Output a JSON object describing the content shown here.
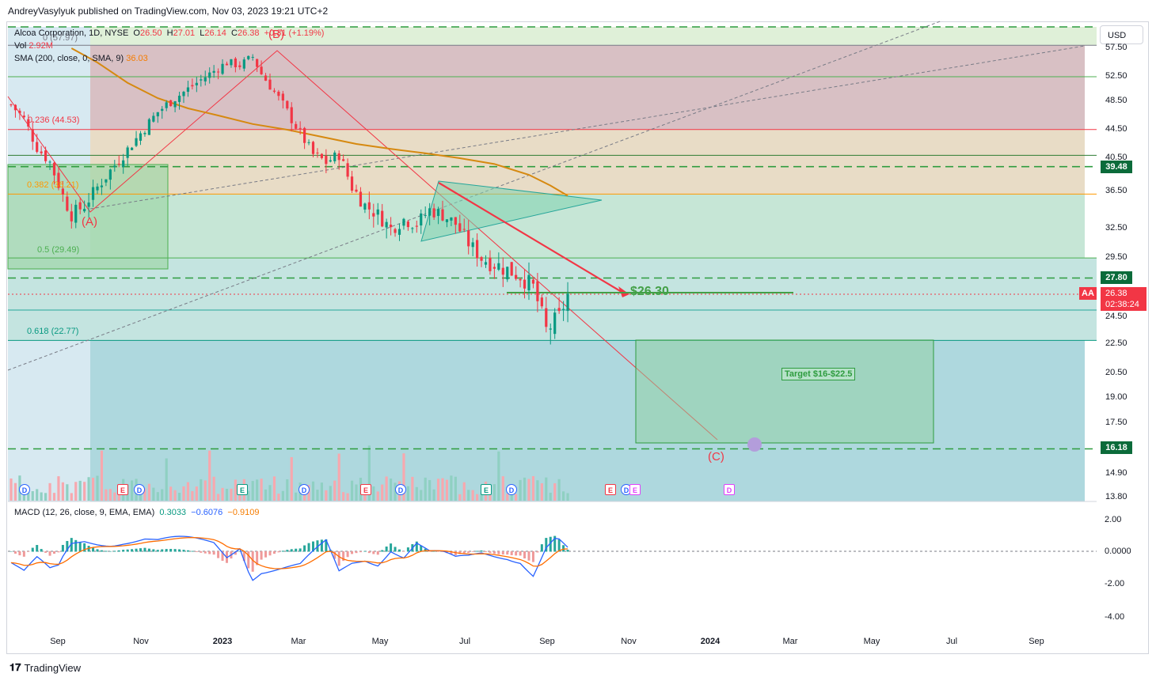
{
  "header": {
    "publisher_line": "AndreyVasylyuk published on TradingView.com, Nov 03, 2023 19:21 UTC+2"
  },
  "legend": {
    "symbol": "Alcoa Corporation, 1D, NYSE",
    "open_label": "O",
    "open": "26.50",
    "high_label": "H",
    "high": "27.01",
    "low_label": "L",
    "low": "26.14",
    "close_label": "C",
    "close": "26.38",
    "change": "+0.31 (+1.19%)",
    "vol_label": "Vol",
    "vol": "2.92M",
    "sma_label": "SMA (200, close, 0, SMA, 9)",
    "sma": "36.03",
    "macd_label": "MACD (12, 26, close, 9, EMA, EMA)",
    "macd_hist": "0.3033",
    "macd_line": "−0.6076",
    "macd_signal": "−0.9109"
  },
  "currency_button": "USD",
  "symbol_tag": "AA",
  "current_price": "26.38",
  "countdown": "02:38:24",
  "price_tags": [
    "39.48",
    "27.80",
    "16.18"
  ],
  "fib_labels": [
    {
      "text": "0 (57.97)",
      "color": "#787b86"
    },
    {
      "text": "0.236 (44.53)",
      "color": "#f23645"
    },
    {
      "text": "0.382 (36.21)",
      "color": "#ff9800"
    },
    {
      "text": "0.5 (29.49)",
      "color": "#4caf50"
    },
    {
      "text": "0.618 (22.77)",
      "color": "#089981"
    }
  ],
  "wave_labels": [
    "(A)",
    "(B)",
    "(C)"
  ],
  "target_label": "Target $16-$22.5",
  "price_callout": "$26.30",
  "event_markers": [
    "D",
    "E",
    "D",
    "E",
    "D",
    "E",
    "D",
    "E",
    "D",
    "E",
    "D",
    "E",
    "D",
    "E"
  ],
  "brand": "TradingView",
  "chart_data": {
    "type": "candlestick",
    "symbol": "AA",
    "title": "Alcoa Corporation, 1D, NYSE",
    "y_axis_ticks": [
      "57.50",
      "52.50",
      "48.50",
      "44.50",
      "40.50",
      "36.50",
      "32.50",
      "29.50",
      "24.50",
      "22.50",
      "20.50",
      "19.00",
      "17.50",
      "14.90",
      "13.80"
    ],
    "x_axis_ticks": [
      "Sep",
      "Nov",
      "2023",
      "Mar",
      "May",
      "Jul",
      "Sep",
      "Nov",
      "2024",
      "Mar",
      "May",
      "Jul",
      "Sep"
    ],
    "price_path": [
      [
        0,
        48
      ],
      [
        3,
        46
      ],
      [
        6,
        42
      ],
      [
        9,
        40
      ],
      [
        12,
        36
      ],
      [
        14,
        34
      ],
      [
        17,
        35
      ],
      [
        20,
        37
      ],
      [
        23,
        39
      ],
      [
        26,
        41
      ],
      [
        30,
        44
      ],
      [
        34,
        47
      ],
      [
        38,
        49
      ],
      [
        42,
        51
      ],
      [
        46,
        53
      ],
      [
        50,
        55
      ],
      [
        53,
        54.5
      ],
      [
        56,
        56
      ],
      [
        58,
        53
      ],
      [
        61,
        50
      ],
      [
        64,
        47
      ],
      [
        67,
        44
      ],
      [
        70,
        41
      ],
      [
        73,
        40
      ],
      [
        76,
        41
      ],
      [
        79,
        37
      ],
      [
        82,
        35
      ],
      [
        85,
        34
      ],
      [
        88,
        32.5
      ],
      [
        91,
        33.5
      ],
      [
        94,
        33
      ],
      [
        97,
        34.5
      ],
      [
        100,
        34
      ],
      [
        103,
        33
      ],
      [
        106,
        31
      ],
      [
        109,
        29.5
      ],
      [
        112,
        29
      ],
      [
        115,
        28.5
      ],
      [
        118,
        28
      ],
      [
        121,
        27
      ],
      [
        124,
        23.5
      ],
      [
        127,
        24.5
      ],
      [
        129,
        26.38
      ]
    ],
    "sma200_path": [
      [
        14,
        57.5
      ],
      [
        20,
        55
      ],
      [
        27,
        51.5
      ],
      [
        34,
        49
      ],
      [
        41,
        47.5
      ],
      [
        48,
        46.5
      ],
      [
        56,
        45.3
      ],
      [
        64,
        44.5
      ],
      [
        72,
        43.5
      ],
      [
        80,
        42.5
      ],
      [
        88,
        41.8
      ],
      [
        96,
        41.2
      ],
      [
        104,
        40.5
      ],
      [
        112,
        39.8
      ],
      [
        120,
        38.5
      ],
      [
        125,
        37.2
      ],
      [
        129,
        36.03
      ]
    ],
    "fib_levels": [
      {
        "ratio": 0,
        "price": 57.97
      },
      {
        "ratio": 0.236,
        "price": 44.53
      },
      {
        "ratio": 0.382,
        "price": 36.21
      },
      {
        "ratio": 0.5,
        "price": 29.49
      },
      {
        "ratio": 0.618,
        "price": 22.77
      }
    ],
    "horizontal_levels": [
      39.48,
      27.8,
      16.18
    ],
    "wave_points": {
      "A": 34.5,
      "B": 57.5,
      "C": 16.5
    },
    "target_zone": [
      16,
      22.5
    ],
    "macd": {
      "axis_ticks": [
        "2.00",
        "0.0000",
        "-2.00",
        "-4.00"
      ],
      "histogram": 0.3033,
      "macd": -0.6076,
      "signal": -0.9109
    }
  }
}
